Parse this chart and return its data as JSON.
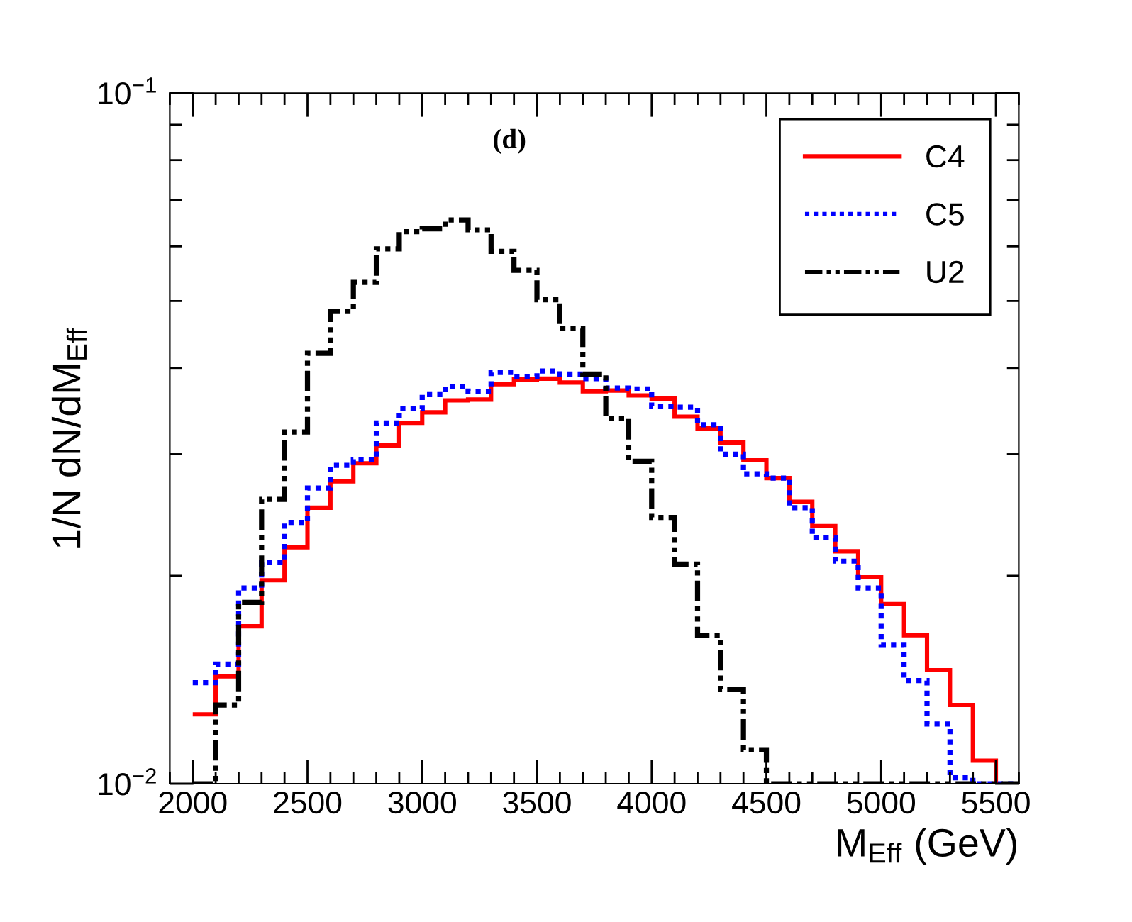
{
  "chart_data": {
    "type": "histogram",
    "title": "(d)",
    "xlabel": "M$_{Eff}$ (GeV)",
    "ylabel": "1/N dN/dM$_{Eff}$",
    "bins": [
      2000,
      2100,
      2200,
      2300,
      2400,
      2500,
      2600,
      2700,
      2800,
      2900,
      3000,
      3100,
      3200,
      3300,
      3400,
      3500,
      3600,
      3700,
      3800,
      3900,
      4000,
      4100,
      4200,
      4300,
      4400,
      4500,
      4600,
      4700,
      4800,
      4900,
      5000,
      5100,
      5200,
      5300,
      5400,
      5500,
      5600
    ],
    "series": [
      {
        "name": "C4",
        "color": "#ff0000",
        "line_style": "solid",
        "values": [
          0.0126,
          0.0143,
          0.0169,
          0.0197,
          0.022,
          0.0251,
          0.0274,
          0.0291,
          0.0309,
          0.0333,
          0.0345,
          0.0359,
          0.036,
          0.0379,
          0.0385,
          0.0386,
          0.0381,
          0.037,
          0.0371,
          0.0365,
          0.0361,
          0.034,
          0.0327,
          0.0312,
          0.0294,
          0.0277,
          0.0256,
          0.0236,
          0.0217,
          0.0199,
          0.0182,
          0.0164,
          0.0146,
          0.013,
          0.0108,
          0.01
        ]
      },
      {
        "name": "C5",
        "color": "#0000ff",
        "line_style": "dotted",
        "values": [
          0.014,
          0.0149,
          0.0192,
          0.0209,
          0.0239,
          0.0268,
          0.0289,
          0.0295,
          0.0333,
          0.0349,
          0.0366,
          0.0376,
          0.037,
          0.0394,
          0.0389,
          0.0396,
          0.0392,
          0.0386,
          0.0374,
          0.0373,
          0.0352,
          0.0351,
          0.0331,
          0.03,
          0.0281,
          0.0277,
          0.0251,
          0.0227,
          0.021,
          0.0192,
          0.0159,
          0.0141,
          0.0122,
          0.0102,
          0.01,
          0.01
        ]
      },
      {
        "name": "U2",
        "color": "#000000",
        "line_style": "dashdotdot",
        "values": [
          0.01,
          0.013,
          0.0183,
          0.0258,
          0.0323,
          0.042,
          0.0483,
          0.0532,
          0.0595,
          0.063,
          0.0636,
          0.0655,
          0.0634,
          0.059,
          0.0554,
          0.0502,
          0.0456,
          0.0392,
          0.0338,
          0.0293,
          0.0243,
          0.0208,
          0.0164,
          0.0137,
          0.0112,
          0.01,
          0.01,
          0.01,
          0.01,
          0.01,
          0.01,
          0.01,
          0.01,
          0.01,
          0.01,
          0.01
        ]
      }
    ],
    "log": true,
    "xlim": [
      1900,
      5600
    ],
    "ylim": [
      0.01,
      0.1
    ],
    "xticks": [
      2000,
      2500,
      3000,
      3500,
      4000,
      4500,
      5000,
      5500
    ],
    "yticks": [
      {
        "value": 0.01,
        "label": "10$^{−2}$"
      },
      {
        "value": 0.1,
        "label": "10$^{−1}$"
      }
    ],
    "legend": "top right",
    "grid": false
  }
}
